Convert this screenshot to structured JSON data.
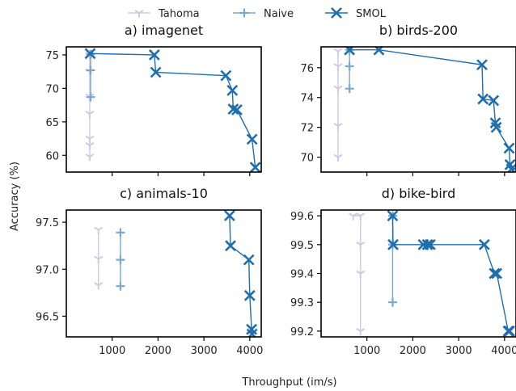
{
  "figure": {
    "xlabel": "Throughput (im/s)",
    "ylabel": "Accuracy (%)",
    "legend": [
      {
        "name": "Tahoma",
        "color": "#cfc9e3",
        "marker": "tri-down"
      },
      {
        "name": "Naive",
        "color": "#7aa8cf",
        "marker": "plus"
      },
      {
        "name": "SMOL",
        "color": "#1f6fae",
        "marker": "x"
      }
    ],
    "legend_placement": "top-center"
  },
  "chart_data": [
    {
      "type": "line",
      "title": "a) imagenet",
      "xlim": [
        0,
        4250
      ],
      "ylim": [
        57.5,
        76.2
      ],
      "xticks": [
        1000,
        2000,
        3000,
        4000
      ],
      "yticks": [
        60,
        65,
        70,
        75
      ],
      "series": [
        {
          "name": "Tahoma",
          "x": [
            510,
            510,
            510,
            510,
            510,
            510,
            510
          ],
          "y": [
            75,
            72.5,
            68.8,
            66.2,
            62.5,
            61.5,
            59.8
          ]
        },
        {
          "name": "Naive",
          "x": [
            530,
            530,
            530
          ],
          "y": [
            75.1,
            72.7,
            68.7
          ]
        },
        {
          "name": "SMOL",
          "x": [
            520,
            1920,
            1950,
            3480,
            3620,
            3640,
            3720,
            4050,
            4120
          ],
          "y": [
            75.2,
            75,
            72.4,
            71.9,
            69.7,
            66.9,
            66.8,
            62.4,
            58.2
          ]
        }
      ]
    },
    {
      "type": "line",
      "title": "b) birds-200",
      "xlim": [
        0,
        4250
      ],
      "ylim": [
        69.0,
        77.4
      ],
      "xticks": [
        1000,
        2000,
        3000,
        4000
      ],
      "yticks": [
        70,
        72,
        74,
        76
      ],
      "series": [
        {
          "name": "Tahoma",
          "x": [
            370,
            370,
            370,
            370,
            370
          ],
          "y": [
            77.1,
            76.1,
            74.6,
            72.1,
            70.0
          ]
        },
        {
          "name": "Naive",
          "x": [
            620,
            620,
            620
          ],
          "y": [
            77.2,
            76.1,
            74.6
          ]
        },
        {
          "name": "SMOL",
          "x": [
            620,
            1260,
            3510,
            3530,
            3760,
            3800,
            3820,
            4100,
            4120,
            4150
          ],
          "y": [
            77.2,
            77.2,
            76.2,
            73.9,
            73.8,
            72.3,
            72.0,
            70.6,
            69.5,
            69.2
          ]
        }
      ]
    },
    {
      "type": "line",
      "title": "c) animals-10",
      "xlim": [
        0,
        4250
      ],
      "ylim": [
        96.28,
        97.63
      ],
      "xticks": [
        1000,
        2000,
        3000,
        4000
      ],
      "yticks": [
        96.5,
        97.0,
        97.5
      ],
      "series": [
        {
          "name": "Tahoma",
          "x": [
            700,
            700,
            700
          ],
          "y": [
            97.42,
            97.11,
            96.83
          ]
        },
        {
          "name": "Naive",
          "x": [
            1180,
            1180,
            1180
          ],
          "y": [
            97.39,
            97.1,
            96.82
          ]
        },
        {
          "name": "SMOL",
          "x": [
            3560,
            3580,
            3980,
            4000,
            4040,
            4050
          ],
          "y": [
            97.57,
            97.25,
            97.1,
            96.72,
            96.36,
            96.31
          ]
        }
      ]
    },
    {
      "type": "line",
      "title": "d) bike-bird",
      "xlim": [
        0,
        4250
      ],
      "ylim": [
        99.18,
        99.62
      ],
      "xticks": [
        1000,
        2000,
        3000,
        4000
      ],
      "yticks": [
        99.2,
        99.3,
        99.4,
        99.5,
        99.6
      ],
      "series": [
        {
          "name": "Tahoma",
          "x": [
            700,
            860,
            860,
            860,
            860
          ],
          "y": [
            99.6,
            99.6,
            99.5,
            99.4,
            99.2
          ]
        },
        {
          "name": "Naive",
          "x": [
            1560,
            1560,
            1560
          ],
          "y": [
            99.6,
            99.5,
            99.3
          ]
        },
        {
          "name": "SMOL",
          "x": [
            1560,
            1570,
            2230,
            2320,
            2380,
            3560,
            3780,
            3830,
            4080,
            4110
          ],
          "y": [
            99.6,
            99.5,
            99.5,
            99.5,
            99.5,
            99.5,
            99.4,
            99.4,
            99.2,
            99.2
          ]
        }
      ]
    }
  ]
}
